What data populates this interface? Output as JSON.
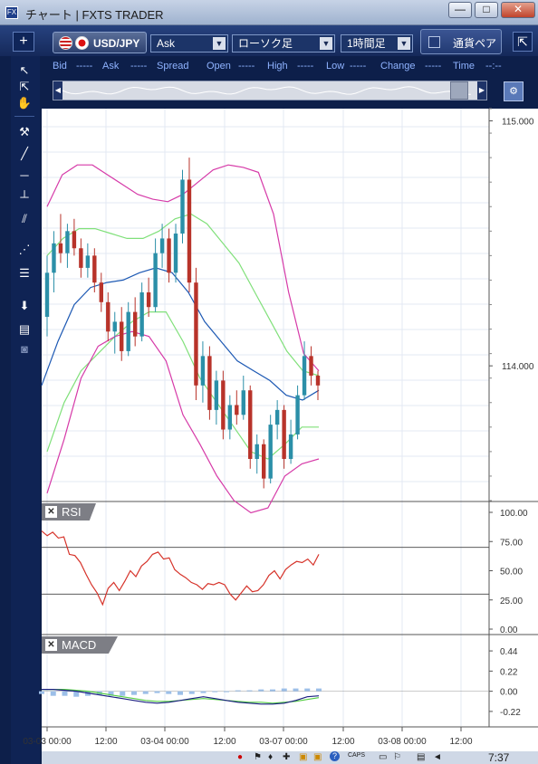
{
  "window": {
    "title": "チャート | FXTS TRADER",
    "icon_text": "FX",
    "minimize": "—",
    "maximize": "□",
    "close": "✕"
  },
  "toolbar": {
    "plus": "+",
    "symbol": "USD/JPY",
    "price_type": "Ask",
    "chart_style": "ローソク足",
    "timeframe": "1時間足",
    "pair_checkbox_label": "通貨ペア",
    "pair_checkbox_checked": false,
    "collapse": "⇱"
  },
  "quote": {
    "bid_label": "Bid",
    "bid_value": "-----",
    "ask_label": "Ask",
    "ask_value": "-----",
    "spread_label": "Spread",
    "open_label": "Open",
    "open_value": "-----",
    "high_label": "High",
    "high_value": "-----",
    "low_label": "Low",
    "low_value": "-----",
    "change_label": "Change",
    "change_value": "-----",
    "time_label": "Time",
    "time_value": "--:--"
  },
  "colors": {
    "bull": "#2b8fa8",
    "bear": "#b8332a",
    "bb_outer": "#d63aa8",
    "bb_inner": "#80e07a",
    "ma": "#1c58b3",
    "rsi": "#d6332a",
    "macd": "#1a1e80",
    "signal": "#55cc44",
    "hist": "#9cbfe8"
  },
  "price_panel": {
    "y_labels": [
      "115.000",
      "114.000"
    ]
  },
  "rsi_panel": {
    "label": "RSI",
    "close": "✕",
    "y_labels": [
      "100.00",
      "75.00",
      "50.00",
      "25.00",
      "0.00"
    ]
  },
  "macd_panel": {
    "label": "MACD",
    "close": "✕",
    "y_labels": [
      "0.44",
      "0.22",
      "0.00",
      "-0.22"
    ]
  },
  "x_axis": {
    "labels": [
      "03-03 00:00",
      "12:00",
      "03-04 00:00",
      "12:00",
      "03-07 00:00",
      "12:00",
      "03-08 00:00",
      "12:00"
    ]
  },
  "tray": {
    "clock": "7:37",
    "caps": "CAPS"
  },
  "chart_data": [
    {
      "type": "candlestick",
      "title": "USD/JPY 1時間足",
      "ylim": [
        113.45,
        115.05
      ],
      "candles": [
        [
          114.2,
          114.45,
          114.12,
          114.38
        ],
        [
          114.38,
          114.55,
          114.3,
          114.5
        ],
        [
          114.5,
          114.62,
          114.42,
          114.46
        ],
        [
          114.46,
          114.58,
          114.4,
          114.55
        ],
        [
          114.55,
          114.6,
          114.45,
          114.48
        ],
        [
          114.48,
          114.52,
          114.36,
          114.4
        ],
        [
          114.4,
          114.5,
          114.36,
          114.45
        ],
        [
          114.45,
          114.48,
          114.3,
          114.34
        ],
        [
          114.34,
          114.38,
          114.22,
          114.26
        ],
        [
          114.26,
          114.3,
          114.1,
          114.14
        ],
        [
          114.14,
          114.22,
          114.05,
          114.18
        ],
        [
          114.18,
          114.24,
          114.02,
          114.06
        ],
        [
          114.06,
          114.26,
          114.04,
          114.22
        ],
        [
          114.22,
          114.28,
          114.08,
          114.12
        ],
        [
          114.12,
          114.34,
          114.1,
          114.3
        ],
        [
          114.3,
          114.36,
          114.2,
          114.24
        ],
        [
          114.24,
          114.52,
          114.22,
          114.46
        ],
        [
          114.46,
          114.58,
          114.4,
          114.52
        ],
        [
          114.52,
          114.56,
          114.34,
          114.38
        ],
        [
          114.38,
          114.58,
          114.34,
          114.54
        ],
        [
          114.54,
          114.8,
          114.5,
          114.76
        ],
        [
          114.76,
          114.85,
          114.3,
          114.34
        ],
        [
          114.34,
          114.4,
          113.86,
          113.92
        ],
        [
          113.92,
          114.1,
          113.85,
          114.04
        ],
        [
          114.04,
          114.08,
          113.78,
          113.82
        ],
        [
          113.82,
          113.98,
          113.76,
          113.94
        ],
        [
          113.94,
          113.98,
          113.7,
          113.74
        ],
        [
          113.74,
          113.88,
          113.7,
          113.84
        ],
        [
          113.84,
          113.9,
          113.76,
          113.8
        ],
        [
          113.8,
          113.96,
          113.78,
          113.9
        ],
        [
          113.9,
          113.92,
          113.58,
          113.62
        ],
        [
          113.62,
          113.72,
          113.56,
          113.68
        ],
        [
          113.68,
          113.7,
          113.5,
          113.54
        ],
        [
          113.54,
          113.8,
          113.52,
          113.76
        ],
        [
          113.76,
          113.86,
          113.7,
          113.82
        ],
        [
          113.82,
          113.84,
          113.58,
          113.62
        ],
        [
          113.62,
          113.78,
          113.6,
          113.72
        ],
        [
          113.72,
          113.92,
          113.7,
          113.88
        ],
        [
          113.88,
          114.1,
          113.86,
          114.04
        ],
        [
          114.04,
          114.08,
          113.92,
          113.96
        ],
        [
          113.96,
          113.98,
          113.86,
          113.92
        ]
      ],
      "bb_upper": [
        114.65,
        114.78,
        114.82,
        114.82,
        114.78,
        114.74,
        114.7,
        114.68,
        114.67,
        114.7,
        114.75,
        114.8,
        114.82,
        114.81,
        114.79,
        114.62,
        114.3,
        114.05,
        113.98
      ],
      "bb_mid_upper": [
        114.45,
        114.52,
        114.56,
        114.56,
        114.54,
        114.52,
        114.52,
        114.55,
        114.6,
        114.62,
        114.58,
        114.5,
        114.42,
        114.3,
        114.18,
        114.06,
        113.98,
        113.96
      ],
      "ma": [
        113.92,
        114.1,
        114.25,
        114.32,
        114.34,
        114.35,
        114.38,
        114.4,
        114.38,
        114.3,
        114.18,
        114.1,
        114.02,
        113.98,
        113.94,
        113.88,
        113.86,
        113.9
      ],
      "bb_mid_lower": [
        113.65,
        113.85,
        113.98,
        114.05,
        114.12,
        114.18,
        114.22,
        114.22,
        114.1,
        113.95,
        113.85,
        113.75,
        113.65,
        113.62,
        113.68,
        113.75,
        113.75
      ],
      "bb_lower": [
        113.48,
        113.7,
        113.95,
        114.08,
        114.12,
        114.14,
        114.12,
        114.02,
        113.8,
        113.68,
        113.55,
        113.45,
        113.4,
        113.42,
        113.55,
        113.6,
        113.62
      ]
    },
    {
      "type": "line",
      "title": "RSI",
      "ylim": [
        0,
        100
      ],
      "values": [
        84,
        80,
        83,
        78,
        79,
        64,
        63,
        57,
        47,
        38,
        31,
        21,
        35,
        40,
        33,
        41,
        50,
        45,
        54,
        58,
        64,
        66,
        60,
        61,
        51,
        47,
        44,
        40,
        38,
        34,
        39,
        38,
        40,
        38,
        30,
        25,
        31,
        37,
        32,
        33,
        38,
        46,
        50,
        43,
        51,
        55,
        58,
        57,
        60,
        55,
        64
      ]
    },
    {
      "type": "line",
      "title": "MACD",
      "ylim": [
        -0.3,
        0.5
      ],
      "macd": [
        0.02,
        0.02,
        0.01,
        0.0,
        -0.02,
        -0.04,
        -0.06,
        -0.08,
        -0.1,
        -0.12,
        -0.13,
        -0.12,
        -0.1,
        -0.08,
        -0.06,
        -0.08,
        -0.1,
        -0.12,
        -0.13,
        -0.14,
        -0.14,
        -0.13,
        -0.1,
        -0.06,
        -0.05
      ],
      "signal": [
        0.02,
        0.02,
        0.02,
        0.01,
        0.0,
        -0.02,
        -0.04,
        -0.06,
        -0.08,
        -0.1,
        -0.11,
        -0.11,
        -0.1,
        -0.09,
        -0.08,
        -0.09,
        -0.1,
        -0.11,
        -0.12,
        -0.12,
        -0.13,
        -0.12,
        -0.11,
        -0.09,
        -0.07
      ],
      "histogram": [
        -0.03,
        -0.05,
        -0.05,
        -0.06,
        -0.05,
        -0.04,
        -0.05,
        -0.05,
        -0.04,
        -0.03,
        -0.02,
        -0.03,
        -0.04,
        -0.03,
        -0.02,
        -0.01,
        0.0,
        0.01,
        0.01,
        0.02,
        0.02,
        0.03,
        0.03,
        0.03,
        0.03
      ]
    }
  ]
}
